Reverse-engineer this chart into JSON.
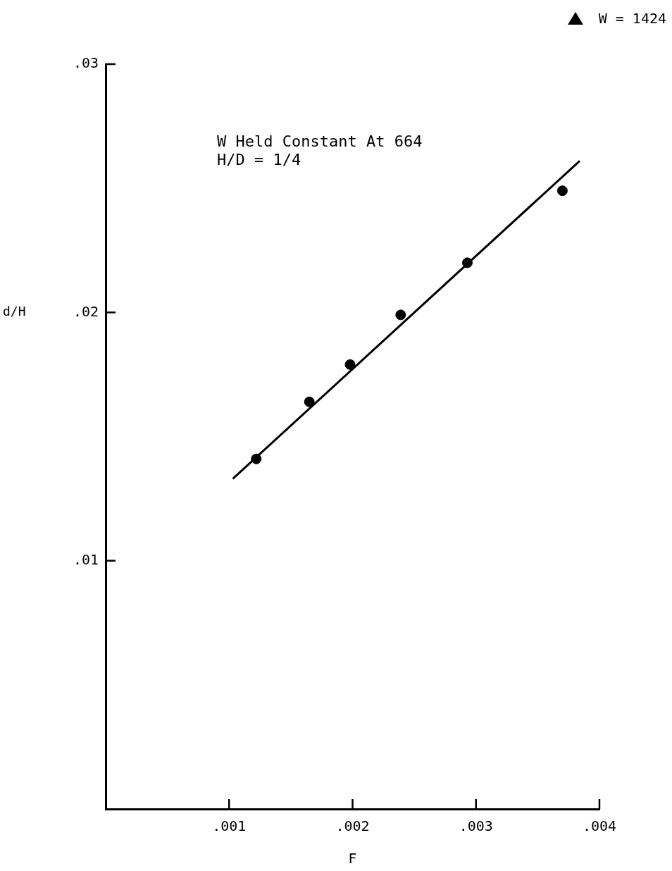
{
  "chart_data": {
    "type": "scatter",
    "xlabel": "F",
    "ylabel": "d/H",
    "xlim": [
      0,
      0.004
    ],
    "ylim": [
      0,
      0.03
    ],
    "xticks": [
      {
        "value": 0.001,
        "label": ".001"
      },
      {
        "value": 0.002,
        "label": ".002"
      },
      {
        "value": 0.003,
        "label": ".003"
      },
      {
        "value": 0.004,
        "label": ".004"
      }
    ],
    "yticks": [
      {
        "value": 0.01,
        "label": ".01"
      },
      {
        "value": 0.02,
        "label": ".02"
      },
      {
        "value": 0.03,
        "label": ".03"
      }
    ],
    "grid": false,
    "legend": false,
    "marker": "circle",
    "annotations": [
      "W Held Constant At 664",
      "H/D = 1/4",
      "W = 1424"
    ],
    "series": [
      {
        "type": "scatter",
        "color": "#000000",
        "x": [
          0.00122,
          0.00165,
          0.00198,
          0.00239,
          0.00293,
          0.0037
        ],
        "values": [
          0.0141,
          0.0164,
          0.0179,
          0.0199,
          0.022,
          0.0249
        ]
      },
      {
        "type": "line",
        "color": "#000000",
        "marker": "none",
        "line_style": "solid",
        "x": [
          0.00103,
          0.00384
        ],
        "values": [
          0.0133,
          0.0261
        ]
      }
    ]
  }
}
